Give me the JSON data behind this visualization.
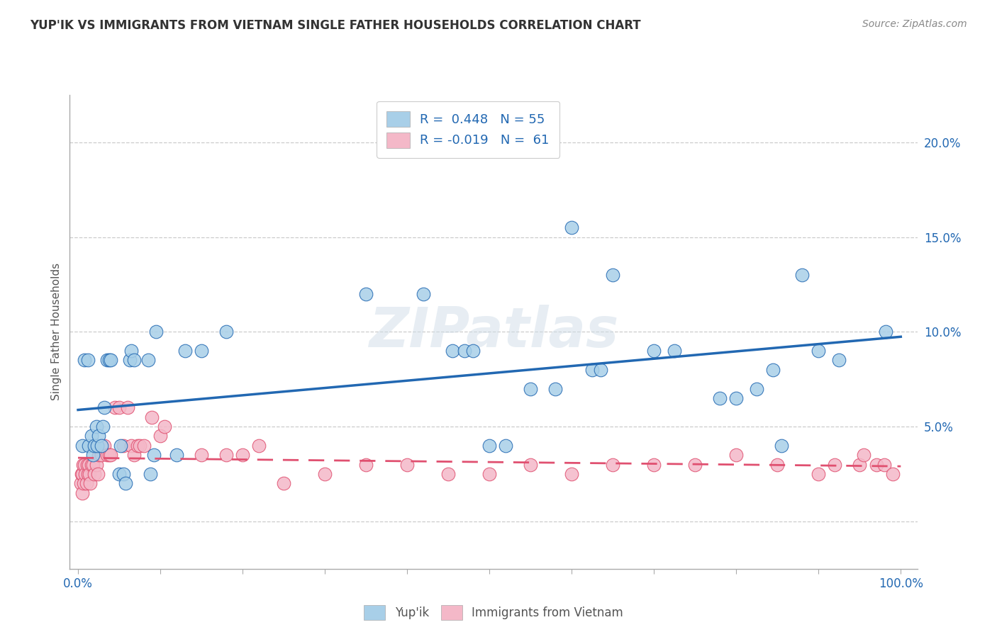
{
  "title": "YUP'IK VS IMMIGRANTS FROM VIETNAM SINGLE FATHER HOUSEHOLDS CORRELATION CHART",
  "source": "Source: ZipAtlas.com",
  "ylabel": "Single Father Households",
  "legend_labels": [
    "Yup'ik",
    "Immigrants from Vietnam"
  ],
  "legend_r_yupik": "R =  0.448",
  "legend_n_yupik": "N = 55",
  "legend_r_vietnam": "R = -0.019",
  "legend_n_vietnam": "N =  61",
  "color_yupik": "#a8cfe8",
  "color_vietnam": "#f4b8c8",
  "color_yupik_line": "#2268b2",
  "color_vietnam_line": "#e05070",
  "color_tick_label": "#2268b2",
  "bg_color": "#ffffff",
  "watermark": "ZIPatlas",
  "xlim": [
    -0.01,
    1.02
  ],
  "ylim": [
    -0.025,
    0.225
  ],
  "yticks": [
    0.0,
    0.05,
    0.1,
    0.15,
    0.2
  ],
  "ytick_labels": [
    "",
    "5.0%",
    "10.0%",
    "15.0%",
    "20.0%"
  ],
  "yupik_x": [
    0.005,
    0.008,
    0.012,
    0.013,
    0.016,
    0.018,
    0.02,
    0.022,
    0.023,
    0.025,
    0.028,
    0.03,
    0.032,
    0.035,
    0.038,
    0.04,
    0.05,
    0.052,
    0.055,
    0.058,
    0.063,
    0.065,
    0.068,
    0.085,
    0.088,
    0.092,
    0.095,
    0.12,
    0.13,
    0.15,
    0.18,
    0.35,
    0.42,
    0.455,
    0.47,
    0.48,
    0.5,
    0.52,
    0.55,
    0.58,
    0.6,
    0.625,
    0.635,
    0.65,
    0.7,
    0.725,
    0.78,
    0.8,
    0.825,
    0.845,
    0.855,
    0.88,
    0.9,
    0.925,
    0.982
  ],
  "yupik_y": [
    0.04,
    0.085,
    0.085,
    0.04,
    0.045,
    0.035,
    0.04,
    0.05,
    0.04,
    0.045,
    0.04,
    0.05,
    0.06,
    0.085,
    0.085,
    0.085,
    0.025,
    0.04,
    0.025,
    0.02,
    0.085,
    0.09,
    0.085,
    0.085,
    0.025,
    0.035,
    0.1,
    0.035,
    0.09,
    0.09,
    0.1,
    0.12,
    0.12,
    0.09,
    0.09,
    0.09,
    0.04,
    0.04,
    0.07,
    0.07,
    0.155,
    0.08,
    0.08,
    0.13,
    0.09,
    0.09,
    0.065,
    0.065,
    0.07,
    0.08,
    0.04,
    0.13,
    0.09,
    0.085,
    0.1
  ],
  "vietnam_x": [
    0.003,
    0.004,
    0.005,
    0.005,
    0.006,
    0.007,
    0.008,
    0.009,
    0.01,
    0.011,
    0.012,
    0.013,
    0.014,
    0.015,
    0.016,
    0.018,
    0.02,
    0.022,
    0.024,
    0.025,
    0.028,
    0.032,
    0.035,
    0.038,
    0.04,
    0.045,
    0.05,
    0.055,
    0.06,
    0.065,
    0.068,
    0.072,
    0.075,
    0.08,
    0.09,
    0.1,
    0.105,
    0.15,
    0.18,
    0.2,
    0.22,
    0.25,
    0.3,
    0.35,
    0.4,
    0.45,
    0.5,
    0.55,
    0.6,
    0.65,
    0.7,
    0.75,
    0.8,
    0.85,
    0.9,
    0.92,
    0.95,
    0.955,
    0.97,
    0.98,
    0.99
  ],
  "vietnam_y": [
    0.02,
    0.025,
    0.015,
    0.025,
    0.03,
    0.02,
    0.03,
    0.025,
    0.02,
    0.03,
    0.025,
    0.03,
    0.025,
    0.02,
    0.03,
    0.03,
    0.025,
    0.03,
    0.025,
    0.035,
    0.035,
    0.04,
    0.035,
    0.035,
    0.035,
    0.06,
    0.06,
    0.04,
    0.06,
    0.04,
    0.035,
    0.04,
    0.04,
    0.04,
    0.055,
    0.045,
    0.05,
    0.035,
    0.035,
    0.035,
    0.04,
    0.02,
    0.025,
    0.03,
    0.03,
    0.025,
    0.025,
    0.03,
    0.025,
    0.03,
    0.03,
    0.03,
    0.035,
    0.03,
    0.025,
    0.03,
    0.03,
    0.035,
    0.03,
    0.03,
    0.025
  ],
  "xtick_positions": [
    0.0,
    0.1,
    0.2,
    0.3,
    0.4,
    0.5,
    0.6,
    0.7,
    0.8,
    0.9,
    1.0
  ]
}
